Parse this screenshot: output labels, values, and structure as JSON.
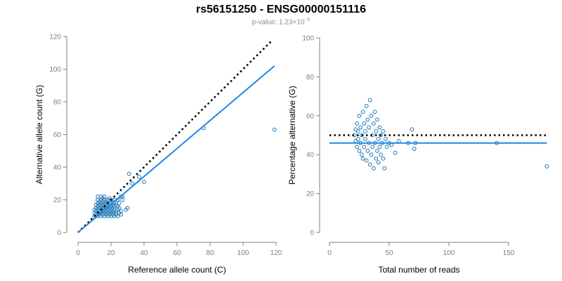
{
  "figure": {
    "title": "rs56151250 - ENSG00000151116",
    "subtitle_prefix": "p-value: 1.23×10",
    "subtitle_exponent": "−5"
  },
  "colors": {
    "points": "#1f77b4",
    "fit_line": "#1e88e5",
    "reference_line": "#000000",
    "axis": "#7f7f7f",
    "tick_label": "#7f7f7f",
    "label": "#000000"
  },
  "chart_data": [
    {
      "type": "scatter",
      "xlabel": "Reference allele count (C)",
      "ylabel": "Alternative allele count (G)",
      "xlim": [
        0,
        120
      ],
      "ylim": [
        0,
        120
      ],
      "x_ticks": [
        0,
        20,
        40,
        60,
        80,
        100,
        120
      ],
      "y_ticks": [
        0,
        20,
        40,
        60,
        80,
        100,
        120
      ],
      "grid": false,
      "reference_line": {
        "style": "dotted",
        "x": [
          0,
          118
        ],
        "y": [
          0,
          118
        ]
      },
      "fit_line": {
        "style": "solid",
        "x": [
          0,
          119
        ],
        "y": [
          0,
          102
        ]
      },
      "points": [
        [
          10,
          10
        ],
        [
          10,
          12
        ],
        [
          10,
          14
        ],
        [
          11,
          11
        ],
        [
          11,
          13
        ],
        [
          11,
          15
        ],
        [
          11,
          17
        ],
        [
          12,
          10
        ],
        [
          12,
          12
        ],
        [
          12,
          14
        ],
        [
          12,
          16
        ],
        [
          12,
          18
        ],
        [
          12,
          20
        ],
        [
          12,
          22
        ],
        [
          13,
          11
        ],
        [
          13,
          13
        ],
        [
          13,
          15
        ],
        [
          13,
          17
        ],
        [
          13,
          19
        ],
        [
          14,
          10
        ],
        [
          14,
          12
        ],
        [
          14,
          14
        ],
        [
          14,
          16
        ],
        [
          14,
          18
        ],
        [
          14,
          20
        ],
        [
          14,
          22
        ],
        [
          15,
          11
        ],
        [
          15,
          13
        ],
        [
          15,
          15
        ],
        [
          15,
          17
        ],
        [
          15,
          19
        ],
        [
          15,
          21
        ],
        [
          16,
          10
        ],
        [
          16,
          12
        ],
        [
          16,
          14
        ],
        [
          16,
          16
        ],
        [
          16,
          18
        ],
        [
          16,
          20
        ],
        [
          16,
          22
        ],
        [
          17,
          11
        ],
        [
          17,
          13
        ],
        [
          17,
          15
        ],
        [
          17,
          17
        ],
        [
          17,
          19
        ],
        [
          18,
          10
        ],
        [
          18,
          12
        ],
        [
          18,
          14
        ],
        [
          18,
          16
        ],
        [
          18,
          18
        ],
        [
          18,
          20
        ],
        [
          19,
          11
        ],
        [
          19,
          13
        ],
        [
          19,
          15
        ],
        [
          19,
          17
        ],
        [
          19,
          21
        ],
        [
          20,
          10
        ],
        [
          20,
          12
        ],
        [
          20,
          14
        ],
        [
          20,
          16
        ],
        [
          20,
          18
        ],
        [
          20,
          20
        ],
        [
          21,
          11
        ],
        [
          21,
          13
        ],
        [
          21,
          15
        ],
        [
          21,
          17
        ],
        [
          21,
          19
        ],
        [
          22,
          10
        ],
        [
          22,
          12
        ],
        [
          22,
          14
        ],
        [
          22,
          16
        ],
        [
          22,
          18
        ],
        [
          22,
          20
        ],
        [
          23,
          11
        ],
        [
          23,
          13
        ],
        [
          23,
          17
        ],
        [
          24,
          10
        ],
        [
          24,
          14
        ],
        [
          24,
          16
        ],
        [
          24,
          20
        ],
        [
          25,
          12
        ],
        [
          25,
          15
        ],
        [
          25,
          18
        ],
        [
          26,
          11
        ],
        [
          26,
          13
        ],
        [
          26,
          22
        ],
        [
          27,
          20
        ],
        [
          27,
          22
        ],
        [
          29,
          14
        ],
        [
          30,
          15
        ],
        [
          31,
          36
        ],
        [
          33,
          30
        ],
        [
          37,
          34
        ],
        [
          40,
          31
        ],
        [
          76,
          64
        ],
        [
          119,
          63
        ]
      ]
    },
    {
      "type": "scatter",
      "xlabel": "Total number of reads",
      "ylabel": "Percentage alternative (G)",
      "xlim": [
        0,
        180
      ],
      "ylim": [
        0,
        100
      ],
      "x_ticks": [
        0,
        50,
        100,
        150
      ],
      "y_ticks": [
        0,
        20,
        40,
        60,
        80,
        100
      ],
      "grid": false,
      "reference_line": {
        "style": "dotted",
        "x": [
          0,
          182
        ],
        "y": [
          50,
          50
        ]
      },
      "fit_line": {
        "style": "solid",
        "x": [
          0,
          182
        ],
        "y": [
          46,
          46
        ]
      },
      "points": [
        [
          21,
          50
        ],
        [
          22,
          47
        ],
        [
          22,
          53
        ],
        [
          23,
          44
        ],
        [
          23,
          56
        ],
        [
          24,
          48
        ],
        [
          24,
          52
        ],
        [
          25,
          42
        ],
        [
          25,
          60
        ],
        [
          26,
          46
        ],
        [
          26,
          54
        ],
        [
          27,
          40
        ],
        [
          27,
          50
        ],
        [
          28,
          62
        ],
        [
          28,
          38
        ],
        [
          29,
          44
        ],
        [
          29,
          56
        ],
        [
          30,
          48
        ],
        [
          30,
          52
        ],
        [
          31,
          37
        ],
        [
          31,
          65
        ],
        [
          32,
          42
        ],
        [
          32,
          58
        ],
        [
          33,
          46
        ],
        [
          33,
          54
        ],
        [
          34,
          68
        ],
        [
          34,
          35
        ],
        [
          35,
          40
        ],
        [
          35,
          60
        ],
        [
          36,
          44
        ],
        [
          36,
          50
        ],
        [
          37,
          56
        ],
        [
          37,
          33
        ],
        [
          38,
          46
        ],
        [
          38,
          62
        ],
        [
          39,
          38
        ],
        [
          39,
          52
        ],
        [
          40,
          42
        ],
        [
          40,
          58
        ],
        [
          41,
          48
        ],
        [
          41,
          36
        ],
        [
          42,
          54
        ],
        [
          42,
          44
        ],
        [
          43,
          50
        ],
        [
          43,
          40
        ],
        [
          44,
          46
        ],
        [
          45,
          38
        ],
        [
          45,
          52
        ],
        [
          46,
          33
        ],
        [
          47,
          48
        ],
        [
          48,
          44
        ],
        [
          50,
          46
        ],
        [
          52,
          45
        ],
        [
          55,
          41
        ],
        [
          58,
          47
        ],
        [
          66,
          46
        ],
        [
          69,
          53
        ],
        [
          71,
          43
        ],
        [
          72,
          46
        ],
        [
          140,
          46
        ],
        [
          182,
          34
        ]
      ]
    }
  ]
}
